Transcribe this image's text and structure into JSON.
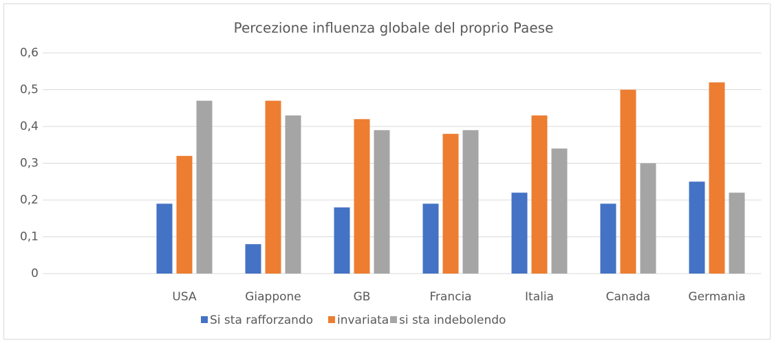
{
  "chart_data": {
    "type": "bar",
    "title": "Percezione influenza globale del proprio Paese",
    "categories": [
      null,
      "USA",
      "Giappone",
      "GB",
      "Francia",
      "Italia",
      "Canada",
      "Germania"
    ],
    "series": [
      {
        "name": "Si sta rafforzando",
        "color": "#4472c4",
        "values": [
          null,
          0.19,
          0.08,
          0.18,
          0.19,
          0.22,
          0.19,
          0.25
        ]
      },
      {
        "name": "invariata",
        "color": "#ed7d31",
        "values": [
          null,
          0.32,
          0.47,
          0.42,
          0.38,
          0.43,
          0.5,
          0.52
        ]
      },
      {
        "name": "si sta indebolendo",
        "color": "#a5a5a5",
        "values": [
          null,
          0.47,
          0.43,
          0.39,
          0.39,
          0.34,
          0.3,
          0.22
        ]
      }
    ],
    "ylim": [
      0,
      0.6
    ],
    "yticks": [
      {
        "value": 0,
        "label": "0"
      },
      {
        "value": 0.1,
        "label": "0,1"
      },
      {
        "value": 0.2,
        "label": "0,2"
      },
      {
        "value": 0.3,
        "label": "0,3"
      },
      {
        "value": 0.4,
        "label": "0,4"
      },
      {
        "value": 0.5,
        "label": "0,5"
      },
      {
        "value": 0.6,
        "label": "0,6"
      }
    ],
    "grid": true,
    "legend": "bottom"
  }
}
